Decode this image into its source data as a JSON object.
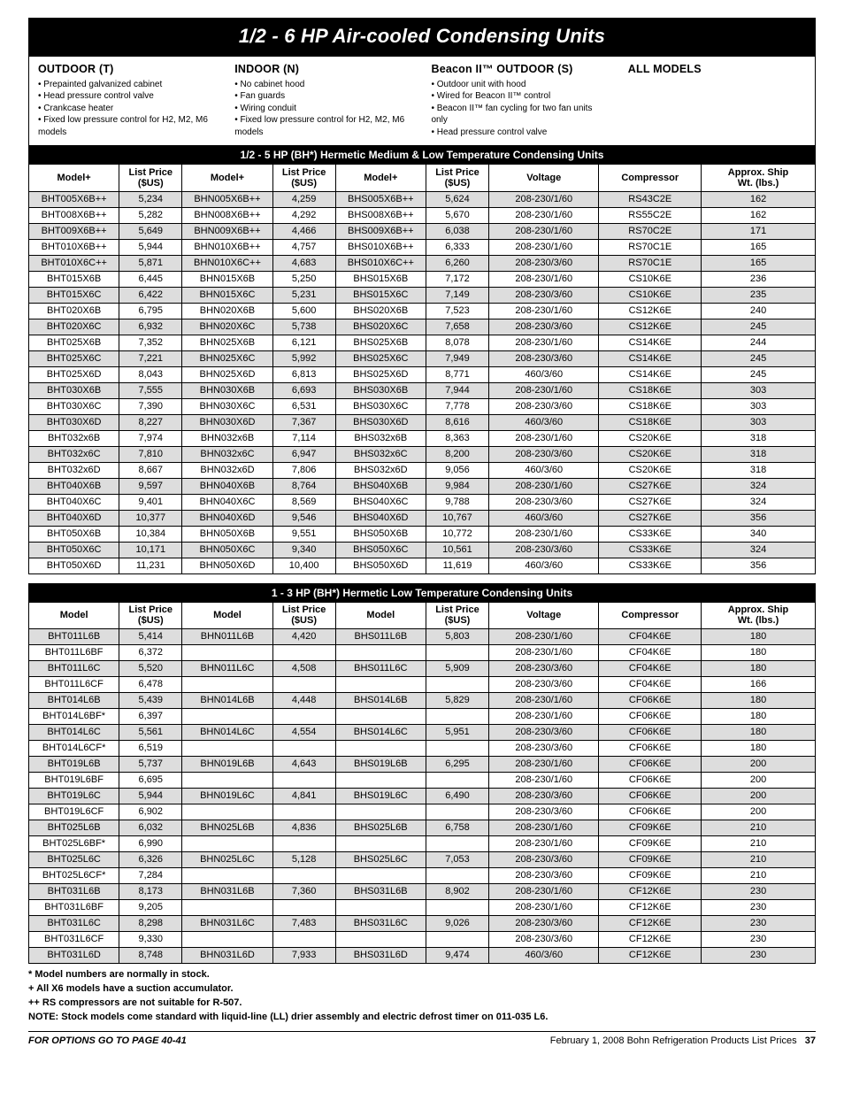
{
  "page_title": "1/2 - 6 HP Air-cooled Condensing Units",
  "features": [
    {
      "heading": "OUTDOOR (T)",
      "items": [
        "Prepainted galvanized cabinet",
        "Head pressure control valve",
        "Crankcase heater",
        "Fixed low pressure control for H2, M2, M6 models"
      ]
    },
    {
      "heading": "INDOOR (N)",
      "items": [
        "No cabinet hood",
        "Fan guards",
        "Wiring conduit",
        "Fixed low pressure control for H2, M2, M6 models"
      ]
    },
    {
      "heading": "Beacon II™ OUTDOOR (S)",
      "items": [
        "Outdoor unit with hood",
        "Wired for Beacon II™ control",
        "Beacon II™ fan cycling for two fan units only",
        "Head pressure control valve"
      ]
    },
    {
      "heading": "ALL MODELS",
      "items": []
    }
  ],
  "table1": {
    "band": "1/2 - 5 HP (BH*) Hermetic Medium & Low Temperature Condensing Units",
    "headers": [
      "Model+",
      "List Price ($US)",
      "Model+",
      "List Price ($US)",
      "Model+",
      "List Price ($US)",
      "Voltage",
      "Compressor",
      "Approx. Ship Wt. (lbs.)"
    ],
    "rows": [
      [
        "BHT005X6B++",
        "5,234",
        "BHN005X6B++",
        "4,259",
        "BHS005X6B++",
        "5,624",
        "208-230/1/60",
        "RS43C2E",
        "162"
      ],
      [
        "BHT008X6B++",
        "5,282",
        "BHN008X6B++",
        "4,292",
        "BHS008X6B++",
        "5,670",
        "208-230/1/60",
        "RS55C2E",
        "162"
      ],
      [
        "BHT009X6B++",
        "5,649",
        "BHN009X6B++",
        "4,466",
        "BHS009X6B++",
        "6,038",
        "208-230/1/60",
        "RS70C2E",
        "171"
      ],
      [
        "BHT010X6B++",
        "5,944",
        "BHN010X6B++",
        "4,757",
        "BHS010X6B++",
        "6,333",
        "208-230/1/60",
        "RS70C1E",
        "165"
      ],
      [
        "BHT010X6C++",
        "5,871",
        "BHN010X6C++",
        "4,683",
        "BHS010X6C++",
        "6,260",
        "208-230/3/60",
        "RS70C1E",
        "165"
      ],
      [
        "BHT015X6B",
        "6,445",
        "BHN015X6B",
        "5,250",
        "BHS015X6B",
        "7,172",
        "208-230/1/60",
        "CS10K6E",
        "236"
      ],
      [
        "BHT015X6C",
        "6,422",
        "BHN015X6C",
        "5,231",
        "BHS015X6C",
        "7,149",
        "208-230/3/60",
        "CS10K6E",
        "235"
      ],
      [
        "BHT020X6B",
        "6,795",
        "BHN020X6B",
        "5,600",
        "BHS020X6B",
        "7,523",
        "208-230/1/60",
        "CS12K6E",
        "240"
      ],
      [
        "BHT020X6C",
        "6,932",
        "BHN020X6C",
        "5,738",
        "BHS020X6C",
        "7,658",
        "208-230/3/60",
        "CS12K6E",
        "245"
      ],
      [
        "BHT025X6B",
        "7,352",
        "BHN025X6B",
        "6,121",
        "BHS025X6B",
        "8,078",
        "208-230/1/60",
        "CS14K6E",
        "244"
      ],
      [
        "BHT025X6C",
        "7,221",
        "BHN025X6C",
        "5,992",
        "BHS025X6C",
        "7,949",
        "208-230/3/60",
        "CS14K6E",
        "245"
      ],
      [
        "BHT025X6D",
        "8,043",
        "BHN025X6D",
        "6,813",
        "BHS025X6D",
        "8,771",
        "460/3/60",
        "CS14K6E",
        "245"
      ],
      [
        "BHT030X6B",
        "7,555",
        "BHN030X6B",
        "6,693",
        "BHS030X6B",
        "7,944",
        "208-230/1/60",
        "CS18K6E",
        "303"
      ],
      [
        "BHT030X6C",
        "7,390",
        "BHN030X6C",
        "6,531",
        "BHS030X6C",
        "7,778",
        "208-230/3/60",
        "CS18K6E",
        "303"
      ],
      [
        "BHT030X6D",
        "8,227",
        "BHN030X6D",
        "7,367",
        "BHS030X6D",
        "8,616",
        "460/3/60",
        "CS18K6E",
        "303"
      ],
      [
        "BHT032x6B",
        "7,974",
        "BHN032x6B",
        "7,114",
        "BHS032x6B",
        "8,363",
        "208-230/1/60",
        "CS20K6E",
        "318"
      ],
      [
        "BHT032x6C",
        "7,810",
        "BHN032x6C",
        "6,947",
        "BHS032x6C",
        "8,200",
        "208-230/3/60",
        "CS20K6E",
        "318"
      ],
      [
        "BHT032x6D",
        "8,667",
        "BHN032x6D",
        "7,806",
        "BHS032x6D",
        "9,056",
        "460/3/60",
        "CS20K6E",
        "318"
      ],
      [
        "BHT040X6B",
        "9,597",
        "BHN040X6B",
        "8,764",
        "BHS040X6B",
        "9,984",
        "208-230/1/60",
        "CS27K6E",
        "324"
      ],
      [
        "BHT040X6C",
        "9,401",
        "BHN040X6C",
        "8,569",
        "BHS040X6C",
        "9,788",
        "208-230/3/60",
        "CS27K6E",
        "324"
      ],
      [
        "BHT040X6D",
        "10,377",
        "BHN040X6D",
        "9,546",
        "BHS040X6D",
        "10,767",
        "460/3/60",
        "CS27K6E",
        "356"
      ],
      [
        "BHT050X6B",
        "10,384",
        "BHN050X6B",
        "9,551",
        "BHS050X6B",
        "10,772",
        "208-230/1/60",
        "CS33K6E",
        "340"
      ],
      [
        "BHT050X6C",
        "10,171",
        "BHN050X6C",
        "9,340",
        "BHS050X6C",
        "10,561",
        "208-230/3/60",
        "CS33K6E",
        "324"
      ],
      [
        "BHT050X6D",
        "11,231",
        "BHN050X6D",
        "10,400",
        "BHS050X6D",
        "11,619",
        "460/3/60",
        "CS33K6E",
        "356"
      ]
    ]
  },
  "table2": {
    "band": "1 - 3 HP (BH*) Hermetic Low Temperature Condensing Units",
    "headers": [
      "Model",
      "List Price ($US)",
      "Model",
      "List Price ($US)",
      "Model",
      "List Price ($US)",
      "Voltage",
      "Compressor",
      "Approx. Ship Wt. (lbs.)"
    ],
    "rows": [
      [
        "BHT011L6B",
        "5,414",
        "BHN011L6B",
        "4,420",
        "BHS011L6B",
        "5,803",
        "208-230/1/60",
        "CF04K6E",
        "180"
      ],
      [
        "BHT011L6BF",
        "6,372",
        "",
        "",
        "",
        "",
        "208-230/1/60",
        "CF04K6E",
        "180"
      ],
      [
        "BHT011L6C",
        "5,520",
        "BHN011L6C",
        "4,508",
        "BHS011L6C",
        "5,909",
        "208-230/3/60",
        "CF04K6E",
        "180"
      ],
      [
        "BHT011L6CF",
        "6,478",
        "",
        "",
        "",
        "",
        "208-230/3/60",
        "CF04K6E",
        "166"
      ],
      [
        "BHT014L6B",
        "5,439",
        "BHN014L6B",
        "4,448",
        "BHS014L6B",
        "5,829",
        "208-230/1/60",
        "CF06K6E",
        "180"
      ],
      [
        "BHT014L6BF*",
        "6,397",
        "",
        "",
        "",
        "",
        "208-230/1/60",
        "CF06K6E",
        "180"
      ],
      [
        "BHT014L6C",
        "5,561",
        "BHN014L6C",
        "4,554",
        "BHS014L6C",
        "5,951",
        "208-230/3/60",
        "CF06K6E",
        "180"
      ],
      [
        "BHT014L6CF*",
        "6,519",
        "",
        "",
        "",
        "",
        "208-230/3/60",
        "CF06K6E",
        "180"
      ],
      [
        "BHT019L6B",
        "5,737",
        "BHN019L6B",
        "4,643",
        "BHS019L6B",
        "6,295",
        "208-230/1/60",
        "CF06K6E",
        "200"
      ],
      [
        "BHT019L6BF",
        "6,695",
        "",
        "",
        "",
        "",
        "208-230/1/60",
        "CF06K6E",
        "200"
      ],
      [
        "BHT019L6C",
        "5,944",
        "BHN019L6C",
        "4,841",
        "BHS019L6C",
        "6,490",
        "208-230/3/60",
        "CF06K6E",
        "200"
      ],
      [
        "BHT019L6CF",
        "6,902",
        "",
        "",
        "",
        "",
        "208-230/3/60",
        "CF06K6E",
        "200"
      ],
      [
        "BHT025L6B",
        "6,032",
        "BHN025L6B",
        "4,836",
        "BHS025L6B",
        "6,758",
        "208-230/1/60",
        "CF09K6E",
        "210"
      ],
      [
        "BHT025L6BF*",
        "6,990",
        "",
        "",
        "",
        "",
        "208-230/1/60",
        "CF09K6E",
        "210"
      ],
      [
        "BHT025L6C",
        "6,326",
        "BHN025L6C",
        "5,128",
        "BHS025L6C",
        "7,053",
        "208-230/3/60",
        "CF09K6E",
        "210"
      ],
      [
        "BHT025L6CF*",
        "7,284",
        "",
        "",
        "",
        "",
        "208-230/3/60",
        "CF09K6E",
        "210"
      ],
      [
        "BHT031L6B",
        "8,173",
        "BHN031L6B",
        "7,360",
        "BHS031L6B",
        "8,902",
        "208-230/1/60",
        "CF12K6E",
        "230"
      ],
      [
        "BHT031L6BF",
        "9,205",
        "",
        "",
        "",
        "",
        "208-230/1/60",
        "CF12K6E",
        "230"
      ],
      [
        "BHT031L6C",
        "8,298",
        "BHN031L6C",
        "7,483",
        "BHS031L6C",
        "9,026",
        "208-230/3/60",
        "CF12K6E",
        "230"
      ],
      [
        "BHT031L6CF",
        "9,330",
        "",
        "",
        "",
        "",
        "208-230/3/60",
        "CF12K6E",
        "230"
      ],
      [
        "BHT031L6D",
        "8,748",
        "BHN031L6D",
        "7,933",
        "BHS031L6D",
        "9,474",
        "460/3/60",
        "CF12K6E",
        "230"
      ]
    ]
  },
  "notes": [
    "* Model numbers are normally in stock.",
    "+ All X6 models have a suction accumulator.",
    "++ RS compressors are not suitable for R-507.",
    "NOTE: Stock models come standard with liquid-line (LL) drier assembly and electric defrost timer on 011-035 L6."
  ],
  "footer": {
    "left": "FOR OPTIONS GO TO PAGE 40-41",
    "right_a": "February 1, 2008 Bohn Refrigeration Products List Prices",
    "page": "37"
  },
  "col_widths": [
    "11.5%",
    "8%",
    "11.5%",
    "8%",
    "11.5%",
    "8%",
    "14%",
    "13%",
    "14.5%"
  ],
  "alt_row_bg": "#dddddd"
}
